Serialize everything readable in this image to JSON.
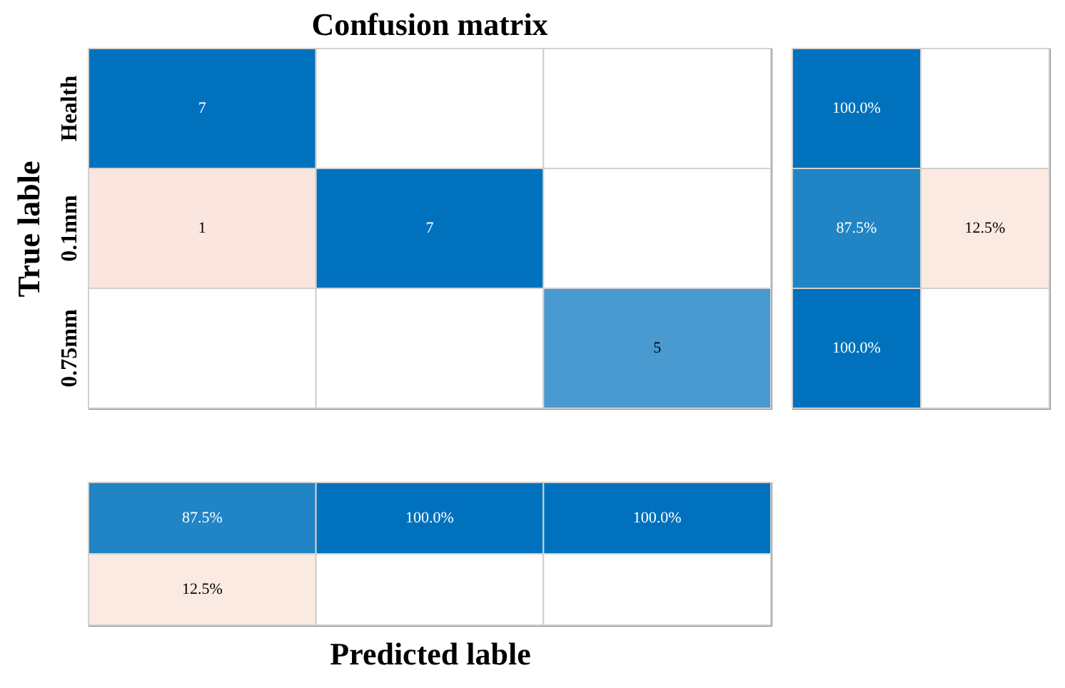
{
  "chart_data": [
    {
      "type": "heatmap",
      "title": "Confusion matrix",
      "ylabel": "True lable",
      "categories": [
        null,
        null,
        null
      ],
      "y_categories": [
        "Health",
        "0.1mm",
        "0.75mm"
      ],
      "tick_labels": "y",
      "data_labels": true,
      "cells": [
        [
          7,
          null,
          null
        ],
        [
          1,
          7,
          null
        ],
        [
          null,
          null,
          5
        ]
      ]
    },
    {
      "type": "heatmap",
      "categories": [
        null,
        null
      ],
      "y_categories": [
        null,
        null,
        null
      ],
      "tick_labels": false,
      "cells": [
        [
          100.0,
          null
        ],
        [
          87.5,
          12.5
        ],
        [
          100.0,
          null
        ]
      ],
      "cell_labels": [
        [
          "100.0%",
          null
        ],
        [
          "87.5%",
          "12.5%"
        ],
        [
          "100.0%",
          null
        ]
      ]
    },
    {
      "type": "heatmap",
      "xlabel": "Predicted lable",
      "categories": [
        null,
        null,
        null
      ],
      "y_categories": [
        null,
        null
      ],
      "tick_labels": false,
      "cells": [
        [
          87.5,
          100.0,
          100.0
        ],
        [
          12.5,
          null,
          null
        ]
      ],
      "cell_labels": [
        [
          "87.5%",
          "100.0%",
          "100.0%"
        ],
        [
          "12.5%",
          null,
          null
        ]
      ]
    }
  ]
}
